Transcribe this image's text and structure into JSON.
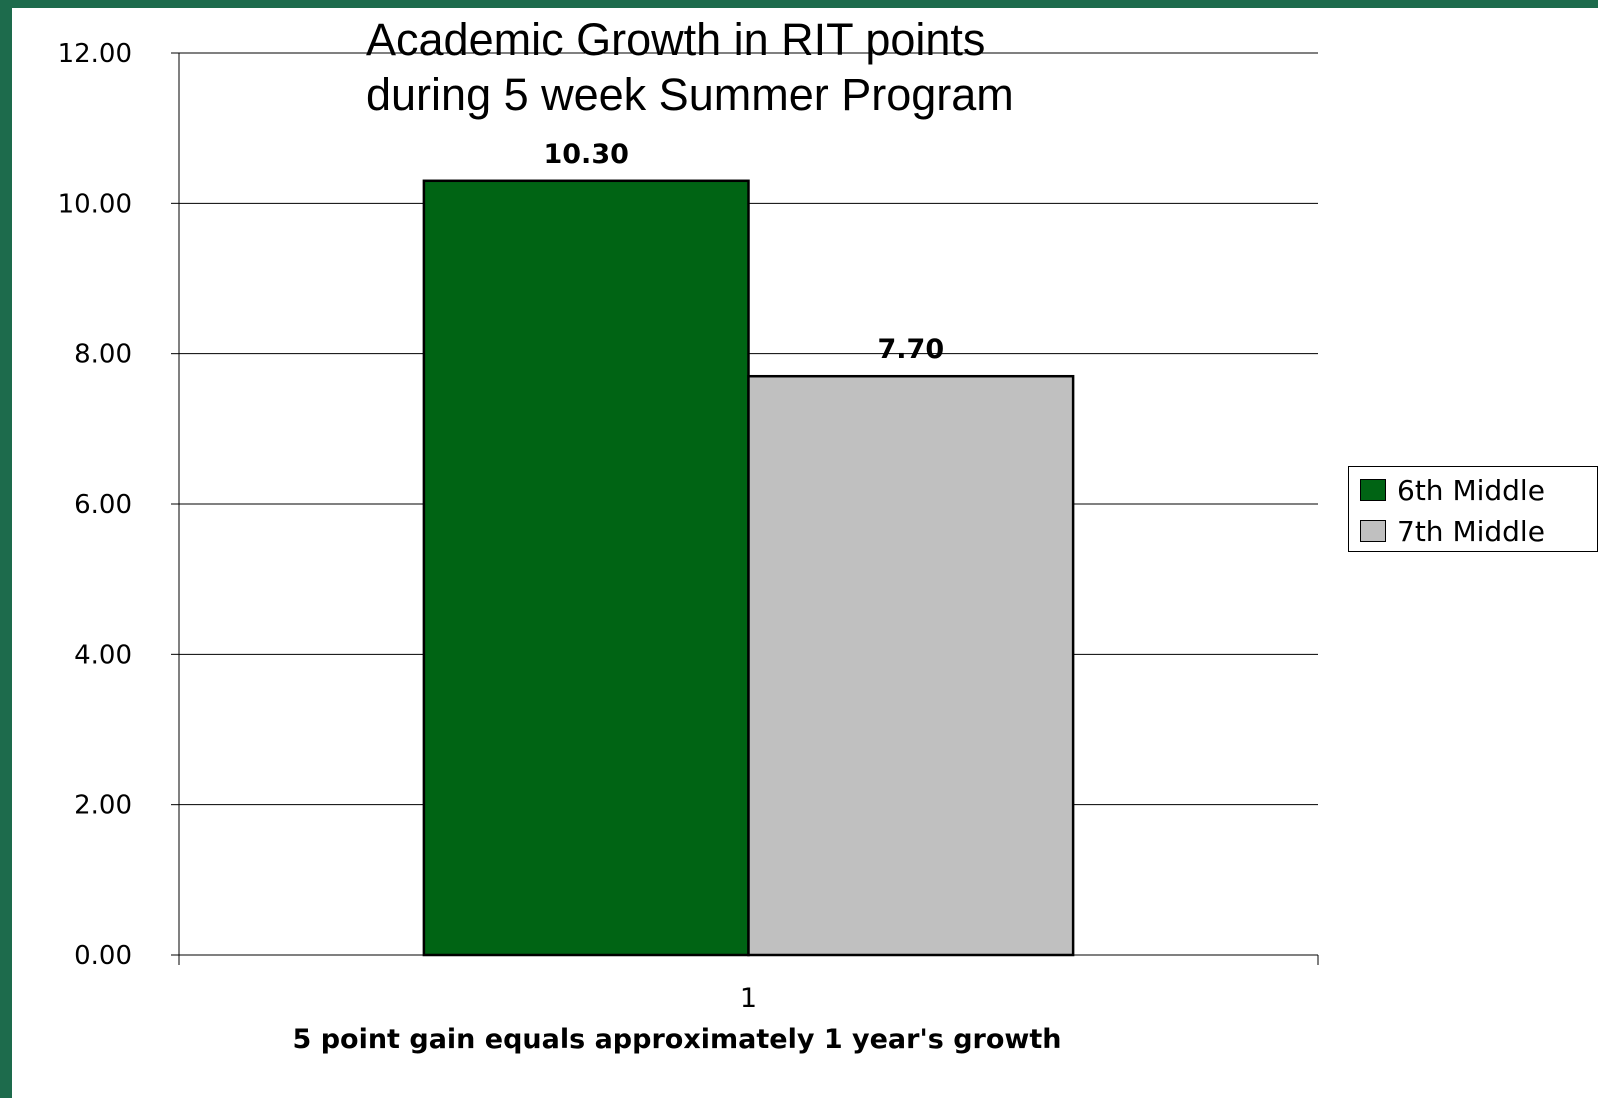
{
  "chart_data": {
    "type": "bar",
    "title": "Academic Growth in RIT points\nduring 5 week Summer Program",
    "xlabel": "5 point gain equals approximately 1 year's growth",
    "ylabel": "",
    "categories": [
      "1"
    ],
    "series": [
      {
        "name": "6th Middle",
        "values": [
          10.3
        ],
        "value_labels": [
          "10.30"
        ],
        "color": "#006414"
      },
      {
        "name": "7th Middle",
        "values": [
          7.7
        ],
        "value_labels": [
          "7.70"
        ],
        "color": "#c0c0c0"
      }
    ],
    "ylim": [
      0,
      12
    ],
    "yticks": [
      0,
      2,
      4,
      6,
      8,
      10,
      12
    ],
    "ytick_labels": [
      "0.00",
      "2.00",
      "4.00",
      "6.00",
      "8.00",
      "10.00",
      "12.00"
    ],
    "grid": true,
    "legend_position": "right"
  },
  "theme": {
    "background": "#1d6b4c",
    "plot_background": "#ffffff"
  }
}
